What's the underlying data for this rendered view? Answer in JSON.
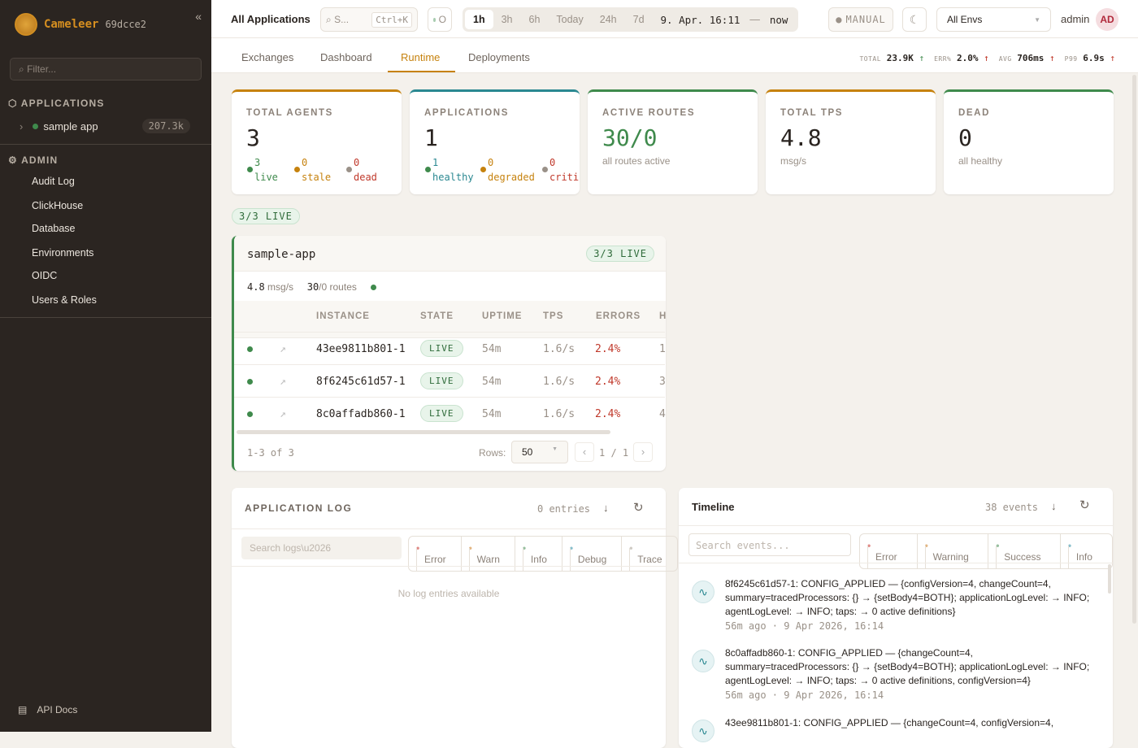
{
  "brand": {
    "name": "Cameleer",
    "version": "69dcce2"
  },
  "sidebar": {
    "filter_placeholder": "Filter...",
    "applications_label": "APPLICATIONS",
    "apps": [
      {
        "name": "sample app",
        "count": "207.3k",
        "status_color": "#3f8a4c"
      }
    ],
    "admin_label": "ADMIN",
    "admin_items": [
      "Audit Log",
      "ClickHouse",
      "Database",
      "Environments",
      "OIDC",
      "Users & Roles"
    ],
    "api_docs": "API Docs"
  },
  "topbar": {
    "title": "All Applications",
    "search_label": "S...",
    "search_shortcut": "Ctrl+K",
    "status_label": "O",
    "ranges": [
      "1h",
      "3h",
      "6h",
      "Today",
      "24h",
      "7d"
    ],
    "active_range": "1h",
    "range_from": "9. Apr. 16:11",
    "range_sep": "—",
    "range_to": "now",
    "refresh_mode": "MANUAL",
    "env": "All Envs",
    "user": "admin",
    "avatar": "AD"
  },
  "tabs": [
    "Exchanges",
    "Dashboard",
    "Runtime",
    "Deployments"
  ],
  "active_tab": "Runtime",
  "kpis": [
    {
      "label": "TOTAL",
      "value": "23.9K",
      "arrow": "↑",
      "color": "#3f8a4c"
    },
    {
      "label": "ERR%",
      "value": "2.0%",
      "arrow": "↑",
      "color": "#c0392b"
    },
    {
      "label": "AVG",
      "value": "706ms",
      "arrow": "↑",
      "color": "#c0392b"
    },
    {
      "label": "P99",
      "value": "6.9s",
      "arrow": "↑",
      "color": "#c0392b"
    }
  ],
  "stats": [
    {
      "label": "TOTAL AGENTS",
      "value": "3",
      "accent": "#c6820e",
      "breakdown": [
        {
          "n": "3",
          "label": "live",
          "color": "#3f8a4c"
        },
        {
          "n": "0",
          "label": "stale",
          "color": "#c6820e"
        },
        {
          "n": "0",
          "label": "dead",
          "color": "#c0392b"
        }
      ]
    },
    {
      "label": "APPLICATIONS",
      "value": "1",
      "accent": "#2a8891",
      "breakdown": [
        {
          "n": "1",
          "label": "healthy",
          "color": "#3f8a4c"
        },
        {
          "n": "0",
          "label": "degraded",
          "color": "#c6820e"
        },
        {
          "n": "0",
          "label": "criti",
          "color": "#c0392b"
        }
      ]
    },
    {
      "label": "ACTIVE ROUTES",
      "value": "30/0",
      "accent": "#3f8a4c",
      "sub": "all routes active"
    },
    {
      "label": "TOTAL TPS",
      "value": "4.8",
      "accent": "#c6820e",
      "sub": "msg/s"
    },
    {
      "label": "DEAD",
      "value": "0",
      "accent": "#3f8a4c",
      "sub": "all healthy"
    }
  ],
  "live_summary": "3/3 LIVE",
  "app_card": {
    "name": "sample-app",
    "badge": "3/3 LIVE",
    "tps": "4.8",
    "tps_unit": "msg/s",
    "routes": "30",
    "routes_rest": "/0 routes",
    "columns": [
      "INSTANCE",
      "STATE",
      "UPTIME",
      "TPS",
      "ERRORS",
      "H"
    ],
    "rows": [
      {
        "instance": "43ee9811b801-1",
        "state": "LIVE",
        "uptime": "54m",
        "tps": "1.6/s",
        "errors": "2.4%",
        "h": "1"
      },
      {
        "instance": "8f6245c61d57-1",
        "state": "LIVE",
        "uptime": "54m",
        "tps": "1.6/s",
        "errors": "2.4%",
        "h": "3"
      },
      {
        "instance": "8c0affadb860-1",
        "state": "LIVE",
        "uptime": "54m",
        "tps": "1.6/s",
        "errors": "2.4%",
        "h": "4"
      }
    ],
    "range": "1-3 of 3",
    "rows_label": "Rows:",
    "rows_value": "50",
    "page": "1 / 1",
    "prev": "‹",
    "next": "›"
  },
  "log": {
    "title": "APPLICATION LOG",
    "entries": "0 entries",
    "search_placeholder": "Search logs\\u2026",
    "levels": [
      {
        "label": "Error",
        "color": "#e08a86"
      },
      {
        "label": "Warn",
        "color": "#e3b683"
      },
      {
        "label": "Info",
        "color": "#98c0a0"
      },
      {
        "label": "Debug",
        "color": "#88bfcc"
      },
      {
        "label": "Trace",
        "color": "#cfcac4"
      }
    ],
    "empty": "No log entries available"
  },
  "timeline": {
    "title": "Timeline",
    "count": "38 events",
    "search_placeholder": "Search events...",
    "levels": [
      {
        "label": "Error",
        "color": "#e08a86"
      },
      {
        "label": "Warning",
        "color": "#e3b683"
      },
      {
        "label": "Success",
        "color": "#98c0a0"
      },
      {
        "label": "Info",
        "color": "#88bfcc"
      }
    ],
    "events": [
      {
        "text": "8f6245c61d57-1: CONFIG_APPLIED — {configVersion=4, changeCount=4, summary=tracedProcessors: {} → {setBody4=BOTH}; applicationLogLevel: → INFO; agentLogLevel: → INFO; taps: → 0 active definitions}",
        "time": "56m ago · 9 Apr 2026, 16:14"
      },
      {
        "text": "8c0affadb860-1: CONFIG_APPLIED — {changeCount=4, summary=tracedProcessors: {} → {setBody4=BOTH}; applicationLogLevel: → INFO; agentLogLevel: → INFO; taps: → 0 active definitions, configVersion=4}",
        "time": "56m ago · 9 Apr 2026, 16:14"
      },
      {
        "text": "43ee9811b801-1: CONFIG_APPLIED — {changeCount=4, configVersion=4,",
        "time": ""
      }
    ]
  }
}
